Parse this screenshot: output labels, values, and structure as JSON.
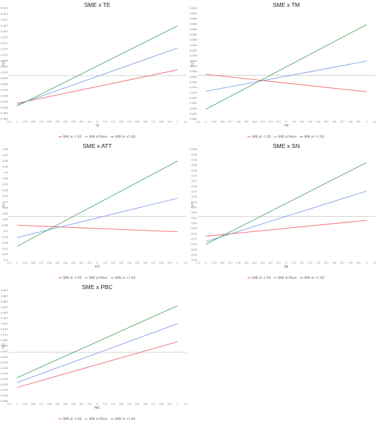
{
  "colors": {
    "low": "#f0606a",
    "mean": "#7f9ce8",
    "high": "#4aa565",
    "axis": "#bbbbbb"
  },
  "chart_data": [
    {
      "type": "line",
      "title": "SME x TE",
      "xlabel": "TE",
      "ylabel": "TVT",
      "xlim": [
        -1.1,
        1.1
      ],
      "ylim": [
        -0.303,
        0.471
      ],
      "xticks": [
        "-1.1",
        "-1",
        "-0.9",
        "-0.8",
        "-0.7",
        "-0.6",
        "-0.5",
        "-0.4",
        "-0.3",
        "-0.2",
        "-0.1",
        "0",
        "0.1",
        "0.2",
        "0.3",
        "0.4",
        "0.5",
        "0.6",
        "0.7",
        "0.8",
        "0.9",
        "1",
        "1.1"
      ],
      "yticks": [
        "0.471",
        "0.417",
        "0.377",
        "0.337",
        "0.297",
        "0.257",
        "0.217",
        "0.177",
        "0.137",
        "0.097",
        "0.057",
        "0.017",
        "-0.023",
        "-0.063",
        "-0.103",
        "-0.143",
        "-0.183",
        "-0.223",
        "-0.263",
        "-0.303"
      ],
      "x": [
        -1,
        1
      ],
      "series": [
        {
          "name": "SME at -1 SD",
          "values": [
            -0.193,
            0.041
          ]
        },
        {
          "name": "SME at Mean",
          "values": [
            -0.203,
            0.193
          ]
        },
        {
          "name": "SME at +1 SD",
          "values": [
            -0.213,
            0.348
          ]
        }
      ],
      "legend": [
        "SME at -1 SD",
        "SME at Mean",
        "SME at +1 SD"
      ],
      "legend_position": "bottom",
      "grid": false
    },
    {
      "type": "line",
      "title": "SME x TM",
      "xlabel": "TM",
      "ylabel": "TVT",
      "xlim": [
        -1.1,
        1.1
      ],
      "ylim": [
        -0.44,
        0.673
      ],
      "xticks": [
        "-1.1",
        "-1",
        "-0.9",
        "-0.8",
        "-0.7",
        "-0.6",
        "-0.5",
        "-0.4",
        "-0.3",
        "-0.2",
        "-0.1",
        "0",
        "0.1",
        "0.2",
        "0.3",
        "0.4",
        "0.5",
        "0.6",
        "0.7",
        "0.8",
        "0.9",
        "1",
        "1.1"
      ],
      "yticks": [
        "0.673",
        "0.559",
        "0.509",
        "0.459",
        "0.409",
        "0.359",
        "0.309",
        "0.259",
        "0.209",
        "0.159",
        "0.109",
        "0.059",
        "0.009",
        "-0.041",
        "-0.091",
        "-0.141",
        "-0.191",
        "-0.241",
        "-0.291",
        "-0.341",
        "-0.391",
        "-0.440"
      ],
      "x": [
        -1,
        1
      ],
      "series": [
        {
          "name": "SME at -1 SD",
          "values": [
            0.009,
            -0.166
          ]
        },
        {
          "name": "SME at Mean",
          "values": [
            -0.161,
            0.142
          ]
        },
        {
          "name": "SME at +1 SD",
          "values": [
            -0.341,
            0.509
          ]
        }
      ],
      "legend": [
        "SME at -1 SD",
        "SME at Mean",
        "SME at +1 SD"
      ],
      "legend_position": "bottom",
      "grid": false
    },
    {
      "type": "line",
      "title": "SME x ATT",
      "xlabel": "ATT",
      "ylabel": "TVT",
      "xlim": [
        -1.1,
        1.1
      ],
      "ylim": [
        -0.3,
        0.46
      ],
      "xticks": [
        "-1.1",
        "-1",
        "-0.9",
        "-0.8",
        "-0.7",
        "-0.6",
        "-0.5",
        "-0.4",
        "-0.3",
        "-0.2",
        "-0.1",
        "0",
        "0.1",
        "0.2",
        "0.3",
        "0.4",
        "0.5",
        "0.6",
        "0.7",
        "0.8",
        "0.9",
        "1",
        "1.1"
      ],
      "yticks": [
        "0.46",
        "0.42",
        "0.38",
        "0.34",
        "0.3",
        "0.26",
        "0.22",
        "0.18",
        "0.14",
        "0.1",
        "0.06",
        "0.02",
        "-0.02",
        "-0.06",
        "-0.1",
        "-0.14",
        "-0.18",
        "-0.22",
        "-0.26",
        "-0.3"
      ],
      "x": [
        -1,
        1
      ],
      "series": [
        {
          "name": "SME at -1 SD",
          "values": [
            -0.06,
            -0.105
          ]
        },
        {
          "name": "SME at Mean",
          "values": [
            -0.145,
            0.125
          ]
        },
        {
          "name": "SME at +1 SD",
          "values": [
            -0.205,
            0.38
          ]
        }
      ],
      "legend": [
        "SME at -1 SD",
        "SME at Mean",
        "SME at +1 SD"
      ],
      "legend_position": "bottom",
      "grid": false
    },
    {
      "type": "line",
      "title": "SME x SN",
      "xlabel": "SN",
      "ylabel": "TVT",
      "xlim": [
        -1.1,
        1.1
      ],
      "ylim": [
        -0.33,
        0.504
      ],
      "xticks": [
        "-1.1",
        "-1",
        "-0.9",
        "-0.8",
        "-0.7",
        "-0.6",
        "-0.5",
        "-0.4",
        "-0.3",
        "-0.2",
        "-0.1",
        "0",
        "0.1",
        "0.2",
        "0.3",
        "0.4",
        "0.5",
        "0.6",
        "0.7",
        "0.8",
        "0.9",
        "1",
        "1.1"
      ],
      "yticks": [
        "0.504",
        "0.47",
        "0.43",
        "0.39",
        "0.35",
        "0.31",
        "0.27",
        "0.23",
        "0.19",
        "0.15",
        "0.11",
        "0.07",
        "0.03",
        "-0.01",
        "-0.05",
        "-0.09",
        "-0.13",
        "-0.17",
        "-0.21",
        "-0.25",
        "-0.29",
        "-0.33"
      ],
      "x": [
        -1,
        1
      ],
      "series": [
        {
          "name": "SME at -1 SD",
          "values": [
            -0.15,
            -0.03
          ]
        },
        {
          "name": "SME at Mean",
          "values": [
            -0.19,
            0.19
          ]
        },
        {
          "name": "SME at +1 SD",
          "values": [
            -0.21,
            0.405
          ]
        }
      ],
      "legend": [
        "SME at -1 SD",
        "SME at Mean",
        "SME at +1 SD"
      ],
      "legend_position": "bottom",
      "grid": false
    },
    {
      "type": "line",
      "title": "SME x PBC",
      "xlabel": "PBC",
      "ylabel": "TVT",
      "xlim": [
        -1.1,
        1.1
      ],
      "ylim": [
        -0.353,
        0.447
      ],
      "xticks": [
        "-1.1",
        "-1",
        "-0.9",
        "-0.8",
        "-0.7",
        "-0.6",
        "-0.5",
        "-0.4",
        "-0.3",
        "-0.2",
        "-0.1",
        "0",
        "0.1",
        "0.2",
        "0.3",
        "0.4",
        "0.5",
        "0.6",
        "0.7",
        "0.8",
        "0.9",
        "1",
        "1.1"
      ],
      "yticks": [
        "0.447",
        "0.407",
        "0.367",
        "0.327",
        "0.287",
        "0.247",
        "0.207",
        "0.167",
        "0.127",
        "0.087",
        "0.047",
        "0.007",
        "-0.033",
        "-0.073",
        "-0.113",
        "-0.153",
        "-0.193",
        "-0.233",
        "-0.273",
        "-0.313",
        "-0.353"
      ],
      "x": [
        -1,
        1
      ],
      "series": [
        {
          "name": "SME at -1 SD",
          "values": [
            -0.253,
            0.077
          ]
        },
        {
          "name": "SME at Mean",
          "values": [
            -0.218,
            0.207
          ]
        },
        {
          "name": "SME at +1 SD",
          "values": [
            -0.183,
            0.337
          ]
        }
      ],
      "legend": [
        "SME at -1 SD",
        "SME at Mean",
        "SME at +1 SD"
      ],
      "legend_position": "bottom",
      "grid": false
    }
  ]
}
